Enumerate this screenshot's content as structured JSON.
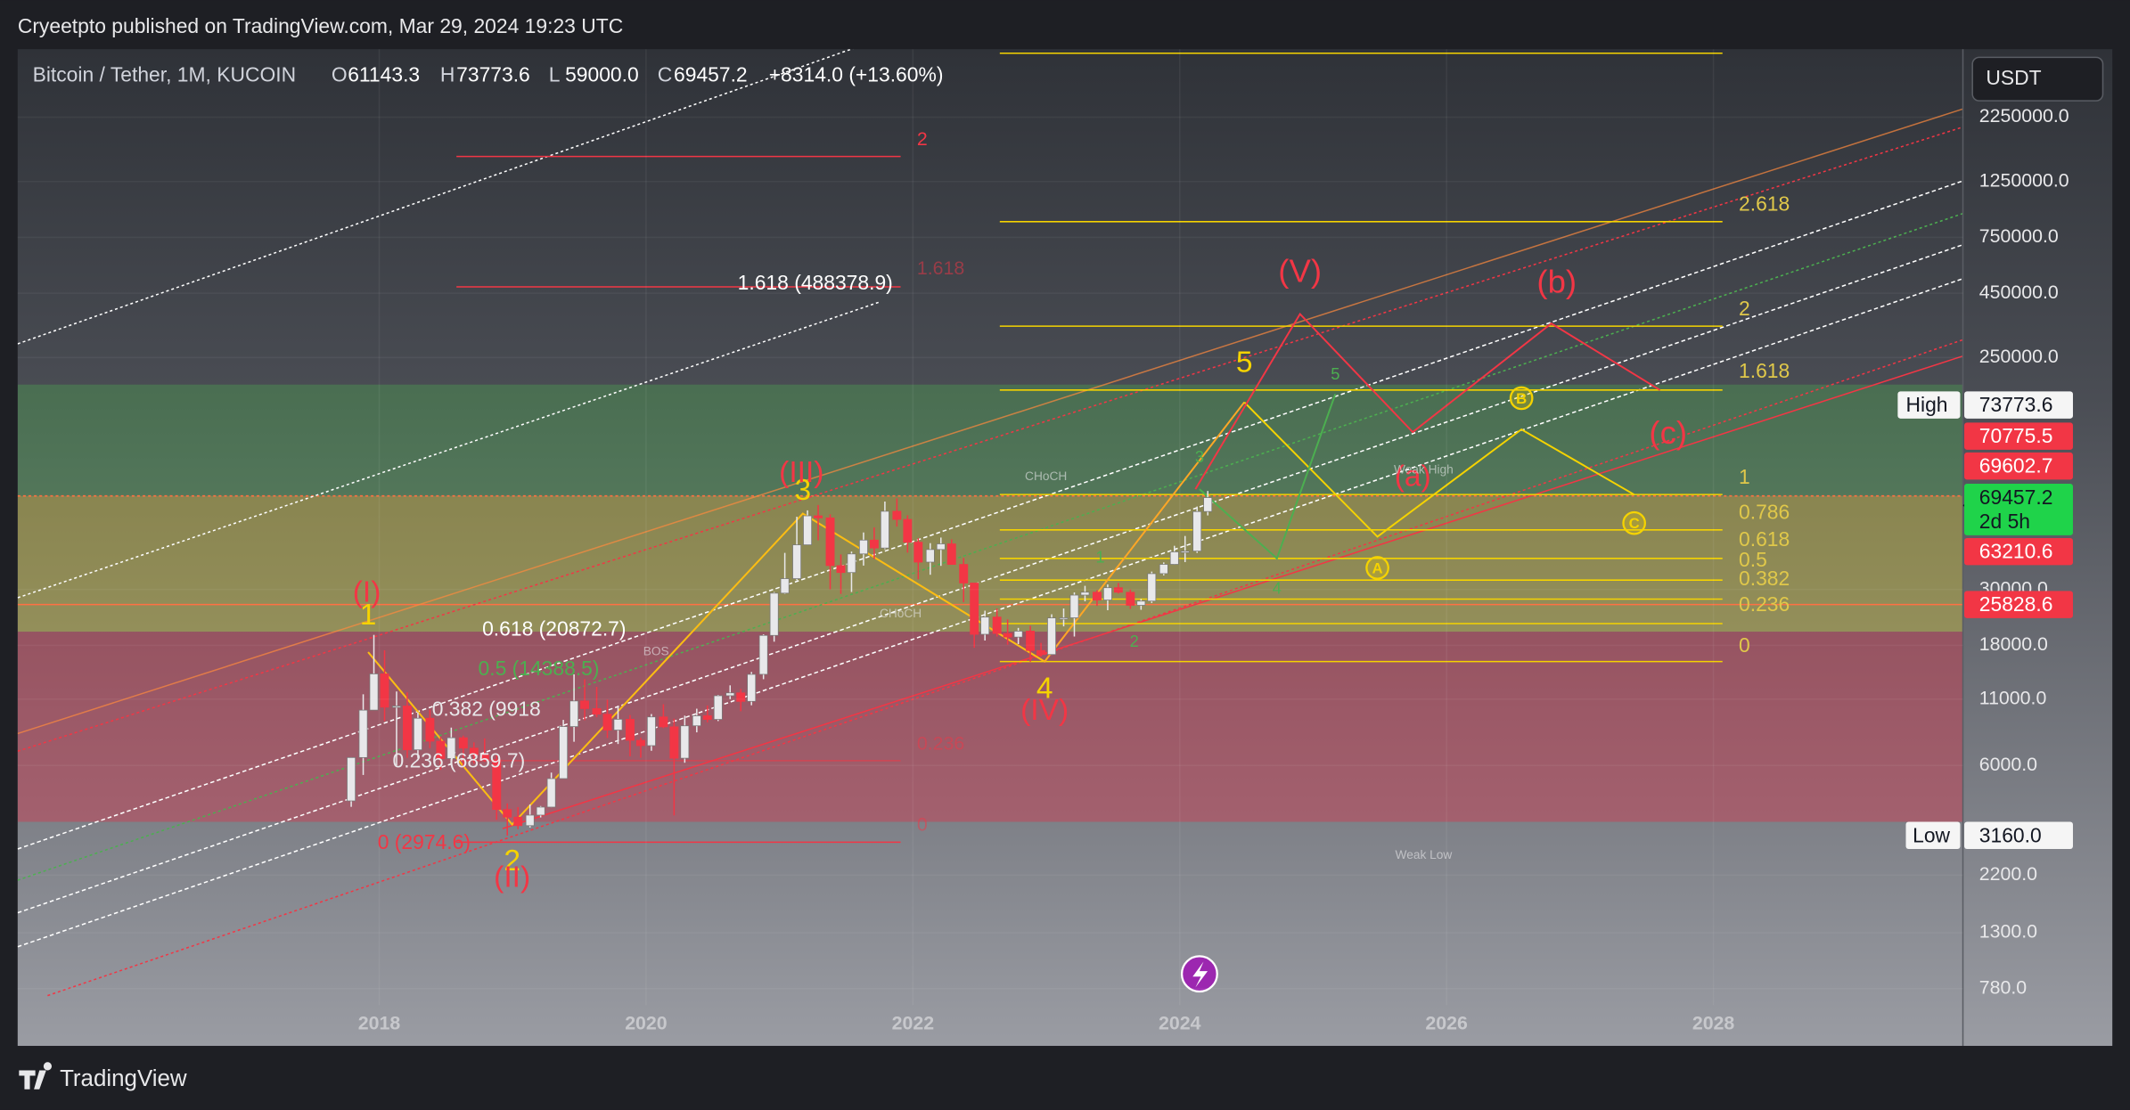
{
  "header": {
    "publisher": "Cryeetpto published on TradingView.com, Mar 29, 2024 19:23 UTC",
    "brand": "TradingView"
  },
  "legend": {
    "symbol": "Bitcoin / Tether, 1M, KUCOIN",
    "o_label": "O",
    "o": "61143.3",
    "h_label": "H",
    "h": "73773.6",
    "l_label": "L",
    "l": "59000.0",
    "c_label": "C",
    "c": "69457.2",
    "change": "+8314.0 (+13.60%)"
  },
  "currency": "USDT",
  "price_tags": [
    {
      "label": "High",
      "value": "73773.6"
    },
    {
      "value": "70775.5"
    },
    {
      "value": "69602.7"
    },
    {
      "value": "69457.2",
      "sub": "2d 5h"
    },
    {
      "value": "63210.6"
    },
    {
      "value": "25828.6"
    },
    {
      "label": "Low",
      "value": "3160.0"
    }
  ],
  "chart_data": {
    "type": "candlestick",
    "log_scale": true,
    "up_color": "#e8e8ea",
    "down_color": "#f23645",
    "x": [
      2017.79,
      2017.88,
      2017.96,
      2018.04,
      2018.13,
      2018.21,
      2018.29,
      2018.38,
      2018.46,
      2018.54,
      2018.63,
      2018.71,
      2018.79,
      2018.88,
      2018.96,
      2019.04,
      2019.13,
      2019.21,
      2019.29,
      2019.38,
      2019.46,
      2019.54,
      2019.63,
      2019.71,
      2019.79,
      2019.88,
      2019.96,
      2020.04,
      2020.13,
      2020.21,
      2020.29,
      2020.38,
      2020.46,
      2020.54,
      2020.63,
      2020.71,
      2020.79,
      2020.88,
      2020.96,
      2021.04,
      2021.13,
      2021.21,
      2021.29,
      2021.38,
      2021.46,
      2021.54,
      2021.63,
      2021.71,
      2021.79,
      2021.88,
      2021.96,
      2022.04,
      2022.13,
      2022.21,
      2022.29,
      2022.38,
      2022.46,
      2022.54,
      2022.63,
      2022.71,
      2022.79,
      2022.88,
      2022.96,
      2023.04,
      2023.13,
      2023.21,
      2023.29,
      2023.38,
      2023.46,
      2023.54,
      2023.63,
      2023.71,
      2023.79,
      2023.88,
      2023.96,
      2024.04,
      2024.13,
      2024.21
    ],
    "open": [
      4338,
      6450,
      9950,
      13860,
      10220,
      10330,
      6920,
      9240,
      7490,
      6390,
      7730,
      7030,
      6620,
      6320,
      4010,
      3740,
      3460,
      3810,
      4100,
      5320,
      8560,
      10820,
      10090,
      9590,
      8290,
      9150,
      7550,
      7190,
      9350,
      8540,
      6410,
      8620,
      9450,
      9140,
      11350,
      11650,
      10780,
      13800,
      19700,
      28990,
      33100,
      45100,
      58800,
      57700,
      37300,
      35000,
      41500,
      47100,
      43800,
      61300,
      56900,
      46200,
      38500,
      43200,
      45500,
      37700,
      31800,
      19900,
      23300,
      20050,
      19400,
      20490,
      17160,
      16540,
      23120,
      23140,
      28480,
      29250,
      27220,
      30470,
      29230,
      25940,
      26960,
      34650,
      37720,
      42280,
      42580,
      61143.3
    ],
    "high": [
      6470,
      11500,
      19800,
      17200,
      11800,
      11700,
      9750,
      9990,
      7780,
      8480,
      7880,
      7410,
      7680,
      6580,
      4240,
      4100,
      4200,
      4140,
      5620,
      9100,
      13800,
      13200,
      12300,
      10950,
      10370,
      9510,
      7740,
      9600,
      10500,
      9200,
      9460,
      10080,
      10380,
      11440,
      12480,
      12070,
      14100,
      19900,
      29300,
      41900,
      58300,
      61800,
      64900,
      59600,
      41300,
      42400,
      50500,
      52900,
      67000,
      69000,
      59100,
      47900,
      45800,
      48200,
      47400,
      40000,
      31700,
      24700,
      25200,
      22800,
      21100,
      21500,
      18400,
      23900,
      25200,
      29200,
      31000,
      29800,
      31400,
      31800,
      30000,
      27500,
      35300,
      38400,
      44700,
      48900,
      64000,
      73773.6
    ],
    "low": [
      4110,
      5500,
      10400,
      9000,
      6000,
      6430,
      6430,
      7030,
      5760,
      6070,
      5880,
      6100,
      6190,
      3650,
      3160,
      3350,
      3400,
      3730,
      4090,
      5350,
      7450,
      9070,
      9320,
      7710,
      7300,
      6520,
      6440,
      6860,
      8440,
      3800,
      6150,
      8120,
      8900,
      9000,
      11000,
      9850,
      10400,
      13200,
      18600,
      28800,
      32600,
      45000,
      47000,
      30000,
      28800,
      29300,
      37300,
      39600,
      43300,
      53300,
      42000,
      32900,
      34300,
      37200,
      37600,
      26700,
      17600,
      18800,
      19500,
      18100,
      18200,
      15480,
      16260,
      16490,
      21400,
      19500,
      26900,
      25800,
      24800,
      28900,
      25100,
      24900,
      26500,
      34100,
      37600,
      38500,
      41900,
      59000
    ],
    "close": [
      6450,
      9950,
      13860,
      10220,
      10330,
      6920,
      9240,
      7490,
      6390,
      7730,
      7030,
      6620,
      6320,
      4010,
      3740,
      3460,
      3810,
      4100,
      5320,
      8560,
      10820,
      10090,
      9590,
      8290,
      9150,
      7550,
      7190,
      9350,
      8540,
      6410,
      8620,
      9450,
      9140,
      11350,
      11650,
      10780,
      13800,
      19700,
      28990,
      33100,
      45100,
      58800,
      57700,
      37300,
      35000,
      41500,
      47100,
      43800,
      61300,
      56900,
      46200,
      38500,
      43200,
      45500,
      37700,
      31800,
      19900,
      23300,
      20050,
      19400,
      20490,
      17160,
      16540,
      23120,
      23140,
      28480,
      29250,
      27220,
      30470,
      29230,
      25940,
      26960,
      34650,
      37720,
      42280,
      42580,
      61130,
      69457.2
    ],
    "xlim": [
      2015.29,
      2029.87
    ],
    "xticks": [
      2018,
      2020,
      2022,
      2024,
      2026,
      2028
    ],
    "ylim": [
      462,
      4190000
    ],
    "yticks": [
      {
        "value": 2250000,
        "label": "2250000.0"
      },
      {
        "value": 1250000,
        "label": "1250000.0"
      },
      {
        "value": 750000,
        "label": "750000.0"
      },
      {
        "value": 450000,
        "label": "450000.0"
      },
      {
        "value": 250000,
        "label": "250000.0"
      },
      {
        "value": 30000,
        "label": "30000.0"
      },
      {
        "value": 18000,
        "label": "18000.0"
      },
      {
        "value": 11000,
        "label": "11000.0"
      },
      {
        "value": 6000,
        "label": "6000.0"
      },
      {
        "value": 2200,
        "label": "2200.0"
      },
      {
        "value": 1300,
        "label": "1300.0"
      },
      {
        "value": 780,
        "label": "780.0"
      }
    ],
    "grid": true,
    "fib_right": [
      "2.618",
      "2",
      "1.618",
      "1",
      "0.786",
      "0.618",
      "0.5",
      "0.382",
      "0.236",
      "0"
    ],
    "fib_left": [
      "1.618 (488378.9)",
      "0.618 (20872.7)",
      "0.5 (14388.5)",
      "0.382 (9918",
      "0.236 (6859.7)",
      "0 (2974.6)",
      "2",
      "1.618",
      "0.236",
      "0"
    ],
    "waves": [
      "1",
      "2",
      "3",
      "4",
      "5",
      "(I)",
      "(II)",
      "(III)",
      "(IV)",
      "(V)",
      "(a)",
      "(b)",
      "(c)",
      "1",
      "2",
      "3",
      "4",
      "5"
    ],
    "circled": [
      "A",
      "B",
      "C"
    ],
    "notes": [
      "CHoCH",
      "Weak High",
      "BOS",
      "CHoCH",
      "Weak Low"
    ]
  }
}
